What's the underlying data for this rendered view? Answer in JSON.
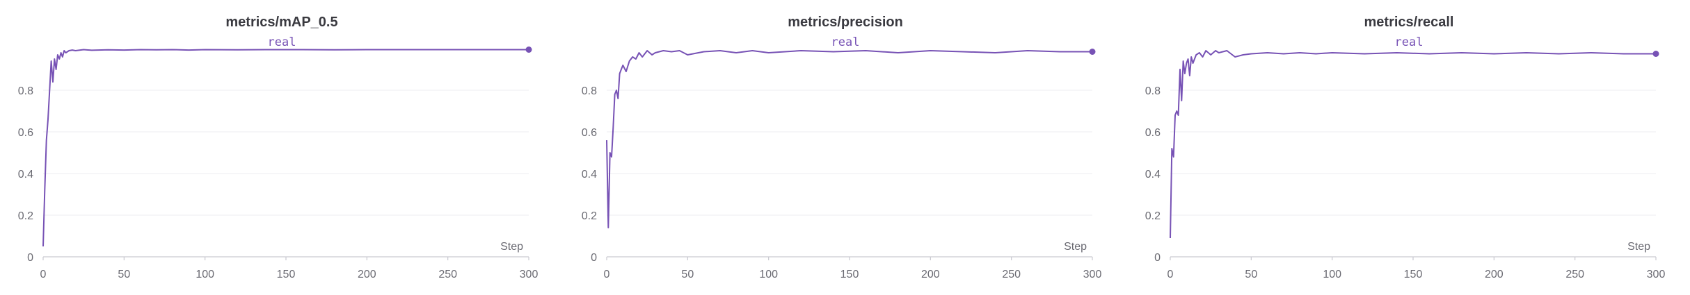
{
  "chart_data": [
    {
      "type": "line",
      "title": "metrics/mAP_0.5",
      "xlabel": "Step",
      "ylabel": "",
      "xlim": [
        0,
        300
      ],
      "ylim": [
        0,
        1
      ],
      "xticks": [
        0,
        50,
        100,
        150,
        200,
        250,
        300
      ],
      "yticks": [
        0,
        0.2,
        0.4,
        0.6,
        0.8
      ],
      "grid": true,
      "legend_position": "top-center",
      "series": [
        {
          "name": "real",
          "color": "#7752b5",
          "x": [
            0,
            1,
            2,
            3,
            4,
            5,
            6,
            7,
            8,
            9,
            10,
            11,
            12,
            13,
            14,
            16,
            18,
            20,
            25,
            30,
            40,
            50,
            60,
            70,
            80,
            90,
            100,
            120,
            140,
            160,
            180,
            200,
            220,
            240,
            260,
            280,
            300
          ],
          "values": [
            0.05,
            0.32,
            0.56,
            0.66,
            0.8,
            0.94,
            0.84,
            0.95,
            0.9,
            0.97,
            0.95,
            0.98,
            0.96,
            0.99,
            0.98,
            0.99,
            0.993,
            0.99,
            0.995,
            0.992,
            0.994,
            0.993,
            0.995,
            0.994,
            0.995,
            0.993,
            0.995,
            0.994,
            0.995,
            0.995,
            0.994,
            0.995,
            0.995,
            0.995,
            0.995,
            0.995,
            0.995
          ]
        }
      ]
    },
    {
      "type": "line",
      "title": "metrics/precision",
      "xlabel": "Step",
      "ylabel": "",
      "xlim": [
        0,
        300
      ],
      "ylim": [
        0,
        1
      ],
      "xticks": [
        0,
        50,
        100,
        150,
        200,
        250,
        300
      ],
      "yticks": [
        0,
        0.2,
        0.4,
        0.6,
        0.8
      ],
      "grid": true,
      "legend_position": "top-center",
      "series": [
        {
          "name": "real",
          "color": "#7752b5",
          "x": [
            0,
            1,
            2,
            3,
            4,
            5,
            6,
            7,
            8,
            9,
            10,
            12,
            14,
            16,
            18,
            20,
            22,
            25,
            28,
            30,
            35,
            40,
            45,
            50,
            60,
            70,
            80,
            90,
            100,
            120,
            140,
            160,
            180,
            200,
            220,
            240,
            260,
            280,
            300
          ],
          "values": [
            0.56,
            0.14,
            0.5,
            0.48,
            0.62,
            0.78,
            0.8,
            0.76,
            0.88,
            0.9,
            0.92,
            0.89,
            0.94,
            0.96,
            0.95,
            0.98,
            0.96,
            0.99,
            0.97,
            0.98,
            0.99,
            0.985,
            0.99,
            0.97,
            0.985,
            0.99,
            0.98,
            0.99,
            0.98,
            0.99,
            0.985,
            0.99,
            0.98,
            0.99,
            0.985,
            0.98,
            0.99,
            0.985,
            0.985
          ]
        }
      ]
    },
    {
      "type": "line",
      "title": "metrics/recall",
      "xlabel": "Step",
      "ylabel": "",
      "xlim": [
        0,
        300
      ],
      "ylim": [
        0,
        1
      ],
      "xticks": [
        0,
        50,
        100,
        150,
        200,
        250,
        300
      ],
      "yticks": [
        0,
        0.2,
        0.4,
        0.6,
        0.8
      ],
      "grid": true,
      "legend_position": "top-center",
      "series": [
        {
          "name": "real",
          "color": "#7752b5",
          "x": [
            0,
            1,
            2,
            3,
            4,
            5,
            6,
            7,
            8,
            9,
            10,
            11,
            12,
            13,
            14,
            16,
            18,
            20,
            22,
            25,
            28,
            30,
            35,
            40,
            45,
            50,
            60,
            70,
            80,
            90,
            100,
            120,
            140,
            160,
            180,
            200,
            220,
            240,
            260,
            280,
            300
          ],
          "values": [
            0.09,
            0.52,
            0.48,
            0.68,
            0.7,
            0.68,
            0.9,
            0.75,
            0.94,
            0.88,
            0.93,
            0.95,
            0.87,
            0.96,
            0.93,
            0.97,
            0.98,
            0.96,
            0.99,
            0.97,
            0.99,
            0.98,
            0.99,
            0.96,
            0.97,
            0.975,
            0.98,
            0.975,
            0.98,
            0.975,
            0.98,
            0.975,
            0.98,
            0.975,
            0.98,
            0.975,
            0.98,
            0.975,
            0.98,
            0.975,
            0.975
          ]
        }
      ]
    }
  ]
}
